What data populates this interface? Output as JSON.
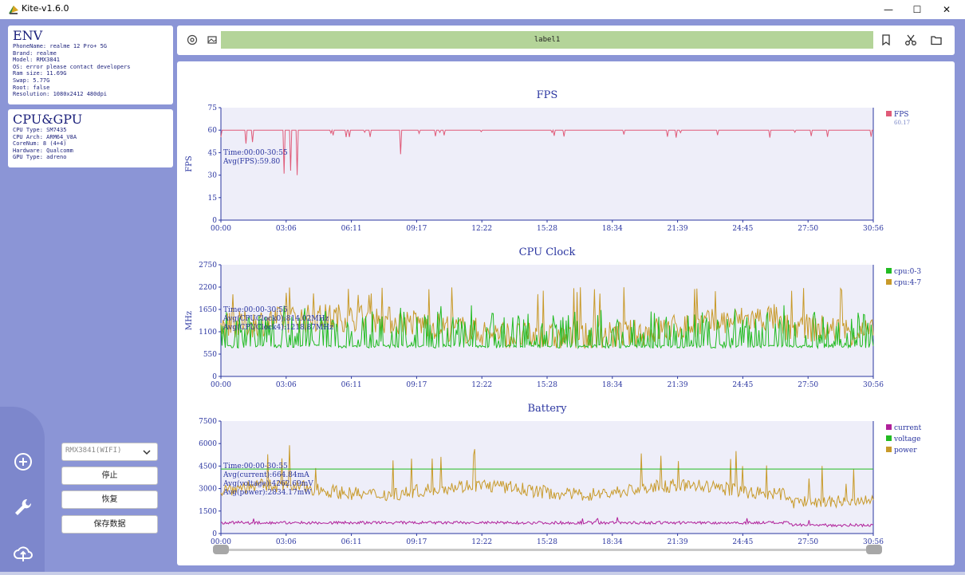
{
  "window": {
    "title": "Kite-v1.6.0",
    "minimize": "—",
    "maximize": "☐",
    "close": "✕"
  },
  "env": {
    "heading": "ENV",
    "lines": [
      "PhoneName: realme 12 Pro+ 5G",
      "Brand: realme",
      "Model: RMX3841",
      "OS: error please contact developers",
      "Ram size: 11.69G",
      "Swap: 5.77G",
      "Root: false",
      "Resolution: 1080x2412 480dpi"
    ]
  },
  "cpu_gpu": {
    "heading": "CPU&GPU",
    "lines": [
      "CPU Type: SM7435",
      "CPU Arch: ARM64_V8A",
      "CoreNum: 8 (4+4)",
      "Hardware: Qualcomm",
      "GPU Type: adreno"
    ]
  },
  "controls": {
    "device_select": "RMX3841(WIFI)",
    "stop_label": "停止",
    "resume_label": "恢复",
    "save_label": "保存数据"
  },
  "toolbar": {
    "label": "label1"
  },
  "colors": {
    "fps": "#e05a78",
    "cpu0": "#22bb22",
    "cpu4": "#c89a2a",
    "current": "#b0209a",
    "voltage": "#22bb22",
    "power": "#c89a2a",
    "axis": "#2a35a0",
    "plotbg": "#eeeef9"
  },
  "x_ticks": [
    "00:00",
    "03:06",
    "06:11",
    "09:17",
    "12:22",
    "15:28",
    "18:34",
    "21:39",
    "24:45",
    "27:50",
    "30:56"
  ],
  "chart_data": [
    {
      "type": "line",
      "title": "FPS",
      "ylabel": "FPS",
      "ylim": [
        0,
        75
      ],
      "yticks": [
        0,
        15,
        30,
        45,
        60,
        75
      ],
      "x_range": [
        "00:00",
        "30:56"
      ],
      "annotations": [
        "Time:00:00-30:55",
        "Avg(FPS):59.80"
      ],
      "legend": [
        {
          "name": "FPS",
          "color": "#e05a78",
          "value": "60.17"
        }
      ],
      "legend_position": "right",
      "series": [
        {
          "name": "FPS",
          "baseline": 60,
          "dips": [
            [
              1.2,
              51
            ],
            [
              1.5,
              52
            ],
            [
              3.0,
              31
            ],
            [
              3.3,
              33
            ],
            [
              3.6,
              30
            ],
            [
              8.5,
              44
            ],
            [
              26.0,
              55
            ]
          ]
        }
      ]
    },
    {
      "type": "line",
      "title": "CPU Clock",
      "ylabel": "MHz",
      "ylim": [
        0,
        2750
      ],
      "yticks": [
        0,
        550,
        1100,
        1650,
        2200,
        2750
      ],
      "x_range": [
        "00:00",
        "30:56"
      ],
      "annotations": [
        "Time:00:00-30:55",
        "Avg(CPUClock0):814.02MHz",
        "Avg(CPUClock4):1218.87MHz"
      ],
      "legend": [
        {
          "name": "cpu:0-3",
          "color": "#22bb22"
        },
        {
          "name": "cpu:4-7",
          "color": "#c89a2a"
        }
      ],
      "legend_position": "right",
      "series": [
        {
          "name": "cpu:0-3",
          "base": 700,
          "spread": 700
        },
        {
          "name": "cpu:4-7",
          "base": 1200,
          "spread": 700
        }
      ]
    },
    {
      "type": "line",
      "title": "Battery",
      "ylim": [
        0,
        7500
      ],
      "yticks": [
        0,
        1500,
        3000,
        4500,
        6000,
        7500
      ],
      "x_range": [
        "00:00",
        "30:56"
      ],
      "annotations": [
        "Time:00:00-30:55",
        "Avg(current):664.84mA",
        "Avg(voltage):4262.69mV",
        "Avg(power):2834.17mW"
      ],
      "legend": [
        {
          "name": "current",
          "color": "#b0209a"
        },
        {
          "name": "voltage",
          "color": "#22bb22"
        },
        {
          "name": "power",
          "color": "#c89a2a"
        }
      ],
      "legend_position": "right",
      "series": [
        {
          "name": "current",
          "level": 665
        },
        {
          "name": "voltage",
          "level": 4300
        },
        {
          "name": "power",
          "level": 2900
        }
      ]
    }
  ]
}
